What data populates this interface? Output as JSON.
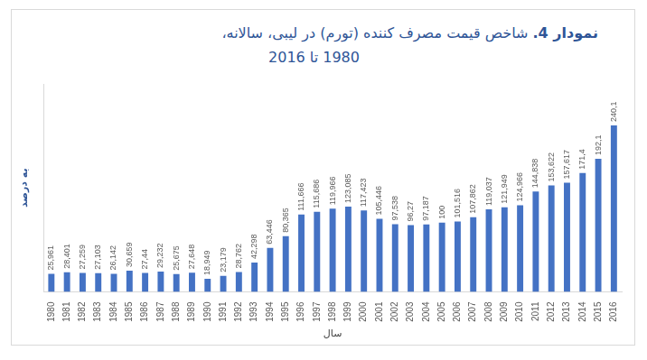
{
  "chart_data": {
    "type": "bar",
    "title": [
      "نمودار 4. شاخص قیمت مصرف کننده (تورم) در لیبی، سالانه،",
      "1980 تا 2016"
    ],
    "x_label": "سال",
    "y_label": "به درصد",
    "categories": [
      "1980",
      "1981",
      "1982",
      "1983",
      "1984",
      "1985",
      "1986",
      "1987",
      "1988",
      "1989",
      "1990",
      "1991",
      "1992",
      "1993",
      "1994",
      "1995",
      "1996",
      "1997",
      "1998",
      "1999",
      "2000",
      "2001",
      "2002",
      "2003",
      "2004",
      "2005",
      "2006",
      "2007",
      "2008",
      "2009",
      "2010",
      "2011",
      "2012",
      "2013",
      "2014",
      "2015",
      "2016"
    ],
    "values": [
      25.961,
      28.401,
      27.259,
      27.103,
      26.142,
      30.659,
      27.44,
      29.232,
      25.675,
      27.648,
      18.949,
      23.179,
      28.762,
      42.298,
      63.446,
      80.365,
      111.666,
      115.686,
      119.966,
      123.085,
      117.423,
      105.446,
      97.538,
      96.27,
      97.187,
      100,
      101.516,
      107.862,
      119.037,
      121.949,
      124.966,
      144.838,
      153.622,
      157.617,
      171.4,
      192.1,
      240.1
    ],
    "value_labels": [
      "25,961",
      "28,401",
      "27,259",
      "27,103",
      "26,142",
      "30,659",
      "27,44",
      "29,232",
      "25,675",
      "27,648",
      "18,949",
      "23,179",
      "28,762",
      "42,298",
      "63,446",
      "80,365",
      "111,666",
      "115,686",
      "119,966",
      "123,085",
      "117,423",
      "105,446",
      "97,538",
      "96,27",
      "97,187",
      "100",
      "101,516",
      "107,862",
      "119,037",
      "121,949",
      "124,966",
      "144,838",
      "153,622",
      "157,617",
      "171,4",
      "192,1",
      "240,1"
    ],
    "color": "#4472c4",
    "ylim": [
      0,
      300
    ],
    "grid": false,
    "data_labels": true,
    "tick_labels": "x"
  }
}
